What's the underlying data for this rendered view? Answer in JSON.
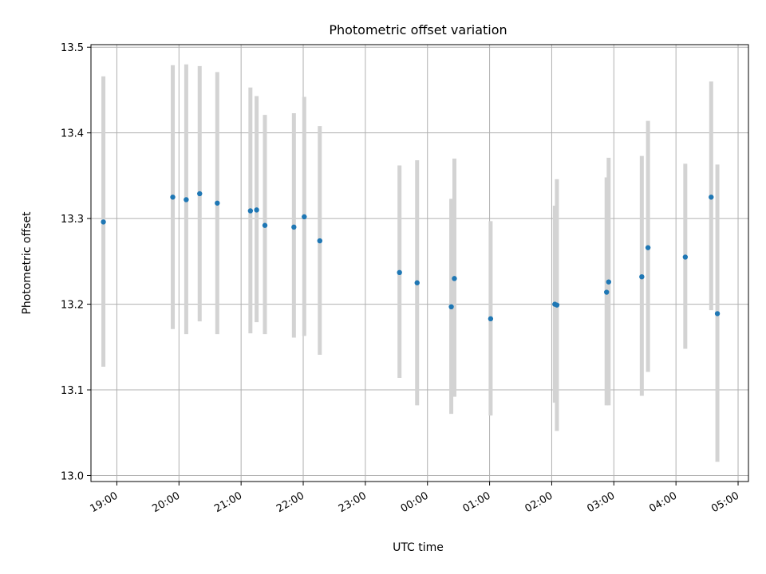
{
  "chart_data": {
    "type": "scatter",
    "title": "Photometric offset variation",
    "xlabel": "UTC time",
    "ylabel": "Photometric offset",
    "x_unit": "hours (UTC, continuing past midnight)",
    "xlim": [
      "18:35",
      "05:10"
    ],
    "ylim": [
      12.993,
      13.503
    ],
    "x_ticks": [
      "19:00",
      "20:00",
      "21:00",
      "22:00",
      "23:00",
      "00:00",
      "01:00",
      "02:00",
      "03:00",
      "04:00",
      "05:00"
    ],
    "y_ticks": [
      "13.0",
      "13.1",
      "13.2",
      "13.3",
      "13.4",
      "13.5"
    ],
    "grid": true,
    "error_bar_color": "#d3d3d3",
    "point_color": "#1f77b4",
    "points": [
      {
        "t": "18:47",
        "y": 13.296,
        "lo": 13.127,
        "hi": 13.466
      },
      {
        "t": "19:54",
        "y": 13.325,
        "lo": 13.171,
        "hi": 13.479
      },
      {
        "t": "20:07",
        "y": 13.322,
        "lo": 13.165,
        "hi": 13.48
      },
      {
        "t": "20:20",
        "y": 13.329,
        "lo": 13.18,
        "hi": 13.478
      },
      {
        "t": "20:37",
        "y": 13.318,
        "lo": 13.165,
        "hi": 13.471
      },
      {
        "t": "21:09",
        "y": 13.309,
        "lo": 13.166,
        "hi": 13.453
      },
      {
        "t": "21:15",
        "y": 13.31,
        "lo": 13.179,
        "hi": 13.443
      },
      {
        "t": "21:23",
        "y": 13.292,
        "lo": 13.165,
        "hi": 13.421
      },
      {
        "t": "21:51",
        "y": 13.29,
        "lo": 13.161,
        "hi": 13.423
      },
      {
        "t": "22:01",
        "y": 13.302,
        "lo": 13.163,
        "hi": 13.442
      },
      {
        "t": "22:16",
        "y": 13.274,
        "lo": 13.141,
        "hi": 13.408
      },
      {
        "t": "23:33",
        "y": 13.237,
        "lo": 13.114,
        "hi": 13.362
      },
      {
        "t": "23:50",
        "y": 13.225,
        "lo": 13.082,
        "hi": 13.368
      },
      {
        "t": "00:23",
        "y": 13.197,
        "lo": 13.072,
        "hi": 13.323
      },
      {
        "t": "00:26",
        "y": 13.23,
        "lo": 13.092,
        "hi": 13.37
      },
      {
        "t": "01:01",
        "y": 13.183,
        "lo": 13.07,
        "hi": 13.297
      },
      {
        "t": "02:03",
        "y": 13.2,
        "lo": 13.085,
        "hi": 13.315
      },
      {
        "t": "02:05",
        "y": 13.199,
        "lo": 13.052,
        "hi": 13.346
      },
      {
        "t": "02:53",
        "y": 13.214,
        "lo": 13.082,
        "hi": 13.348
      },
      {
        "t": "02:55",
        "y": 13.226,
        "lo": 13.082,
        "hi": 13.371
      },
      {
        "t": "03:27",
        "y": 13.232,
        "lo": 13.093,
        "hi": 13.373
      },
      {
        "t": "03:33",
        "y": 13.266,
        "lo": 13.121,
        "hi": 13.414
      },
      {
        "t": "04:09",
        "y": 13.255,
        "lo": 13.148,
        "hi": 13.364
      },
      {
        "t": "04:34",
        "y": 13.325,
        "lo": 13.193,
        "hi": 13.46
      },
      {
        "t": "04:40",
        "y": 13.189,
        "lo": 13.016,
        "hi": 13.363
      }
    ]
  }
}
